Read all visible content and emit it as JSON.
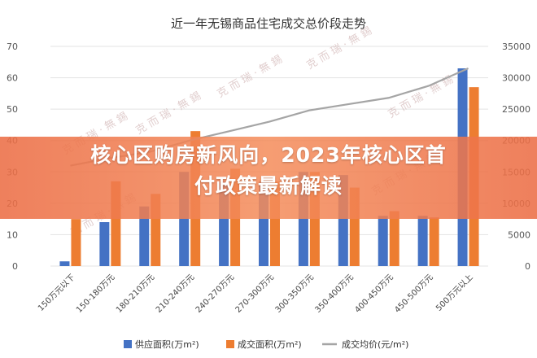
{
  "chart_data": {
    "type": "bar",
    "title": "近一年无锡商品住宅成交总价段走势",
    "categories": [
      "150万元以下",
      "150-180万元",
      "180-210万元",
      "210-240万元",
      "240-270万元",
      "270-300万元",
      "300-350万元",
      "350-400万元",
      "400-450万元",
      "450-500万元",
      "500万元以上"
    ],
    "series": [
      {
        "name": "供应面积(万m²)",
        "type": "bar",
        "axis": "left",
        "color": "#4472c4",
        "values": [
          1.5,
          14,
          19,
          30,
          27,
          27,
          30,
          29,
          16,
          16,
          63
        ]
      },
      {
        "name": "成交面积(万m²)",
        "type": "bar",
        "axis": "left",
        "color": "#ed7d31",
        "values": [
          15,
          27,
          23,
          43,
          31,
          27,
          30,
          25,
          17.5,
          15.5,
          57
        ]
      },
      {
        "name": "成交均价(元/m²)",
        "type": "line",
        "axis": "right",
        "color": "#a5a5a5",
        "values": [
          16000,
          17200,
          18200,
          20000,
          21500,
          23000,
          24800,
          25800,
          26800,
          28700,
          31500
        ]
      }
    ],
    "ylim_left": [
      0,
      70
    ],
    "ylim_right": [
      0,
      35000
    ],
    "yticks_left": [
      "0",
      "10",
      "20",
      "30",
      "40",
      "50",
      "60",
      "70"
    ],
    "yticks_right": [
      "0",
      "5000",
      "10000",
      "15000",
      "20000",
      "25000",
      "30000",
      "35000"
    ],
    "legend_position": "bottom",
    "grid": true
  },
  "banner": {
    "line1": "核心区购房新风向，2023年核心区首",
    "line2": "付政策最新解读"
  },
  "watermark": "克 而 瑞 · 無 錫"
}
